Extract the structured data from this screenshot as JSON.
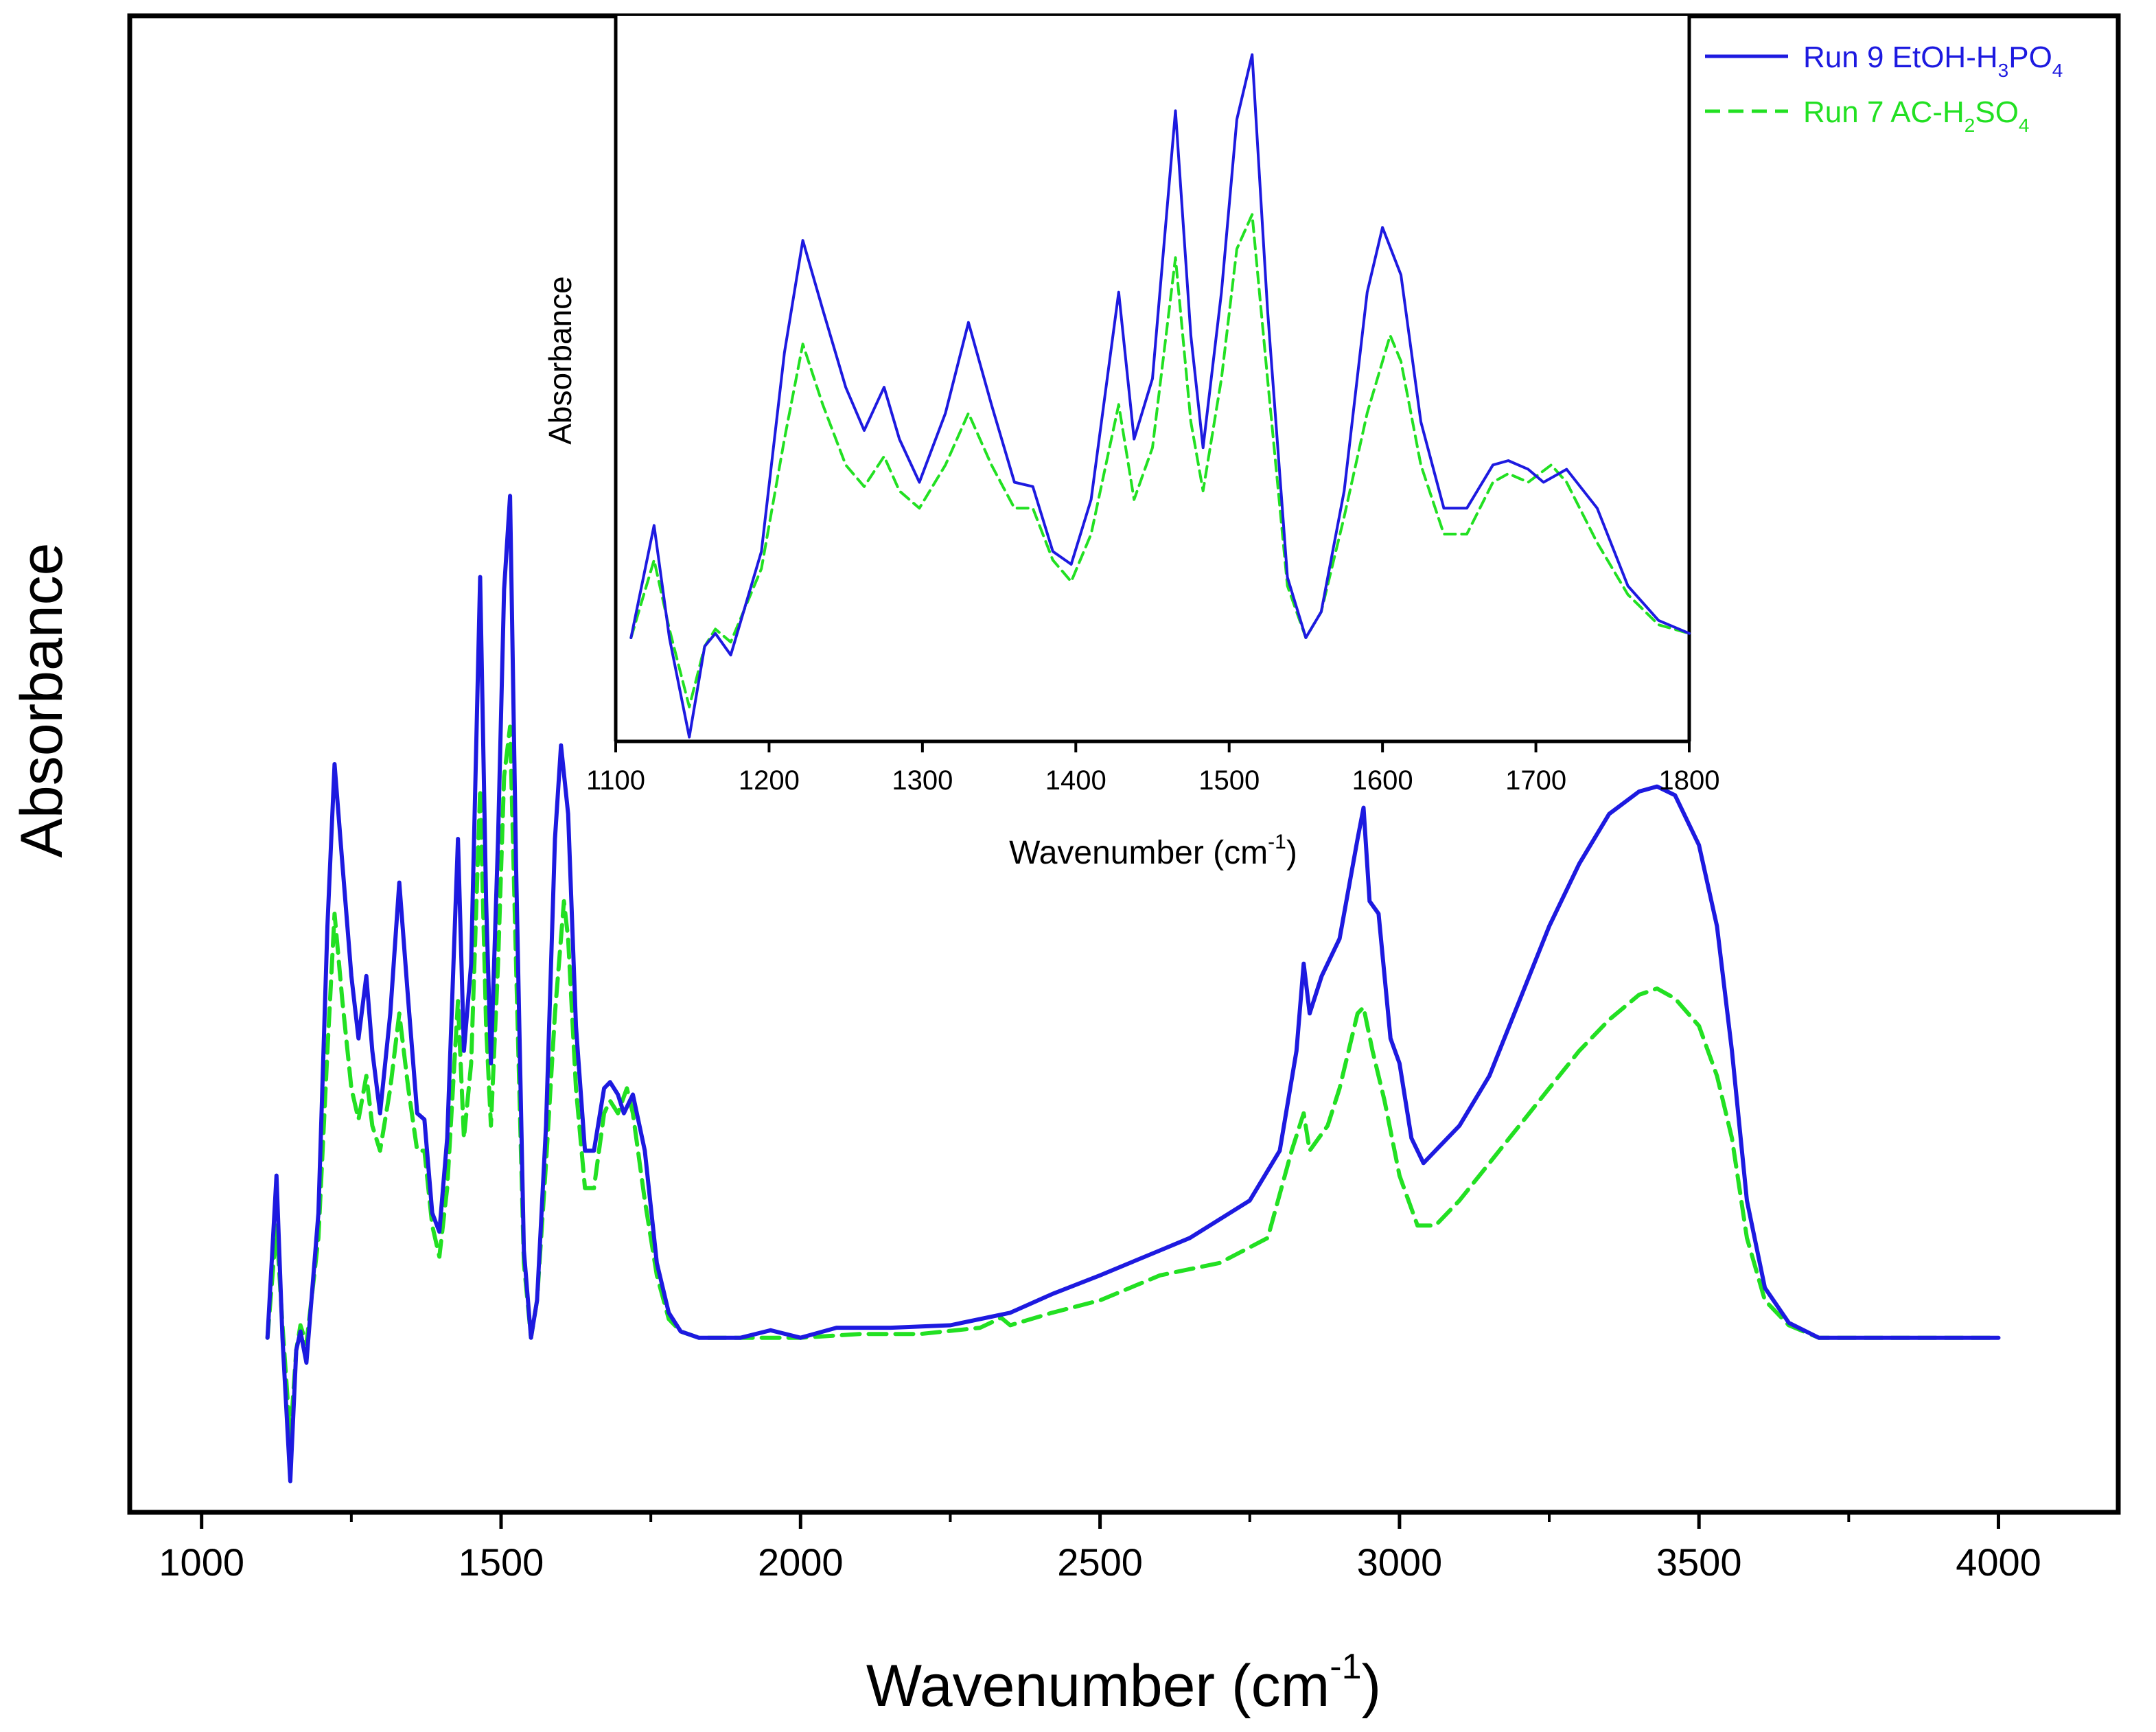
{
  "chart_data": [
    {
      "type": "line",
      "role": "main",
      "xlabel": "Wavenumber (cm",
      "xlabel_sup": "-1",
      "xlabel_close": ")",
      "ylabel": "Absorbance",
      "xlim": [
        880,
        4200
      ],
      "ylim": [
        -0.14,
        1.06
      ],
      "xticks": [
        1000,
        1500,
        2000,
        2500,
        3000,
        3500,
        4000
      ],
      "xtick_labels": [
        "1000",
        "1500",
        "2000",
        "2500",
        "3000",
        "3500",
        "4000"
      ],
      "minor_xticks": [
        1250,
        1750,
        2250,
        2750,
        3250,
        3750
      ],
      "grid": false,
      "series": [
        {
          "name": "Run 9 EtOH-H3PO4",
          "color": "#1d1ae0",
          "style": "solid",
          "points": [
            [
              1110,
              0.0
            ],
            [
              1125,
              0.13
            ],
            [
              1135,
              0.0
            ],
            [
              1148,
              -0.115
            ],
            [
              1158,
              -0.01
            ],
            [
              1165,
              0.005
            ],
            [
              1175,
              -0.02
            ],
            [
              1195,
              0.1
            ],
            [
              1210,
              0.33
            ],
            [
              1222,
              0.46
            ],
            [
              1235,
              0.38
            ],
            [
              1250,
              0.29
            ],
            [
              1262,
              0.24
            ],
            [
              1275,
              0.29
            ],
            [
              1285,
              0.23
            ],
            [
              1298,
              0.18
            ],
            [
              1315,
              0.26
            ],
            [
              1330,
              0.365
            ],
            [
              1345,
              0.27
            ],
            [
              1360,
              0.18
            ],
            [
              1372,
              0.175
            ],
            [
              1385,
              0.1
            ],
            [
              1397,
              0.085
            ],
            [
              1410,
              0.16
            ],
            [
              1428,
              0.4
            ],
            [
              1438,
              0.23
            ],
            [
              1450,
              0.3
            ],
            [
              1465,
              0.61
            ],
            [
              1475,
              0.35
            ],
            [
              1483,
              0.22
            ],
            [
              1495,
              0.4
            ],
            [
              1505,
              0.6
            ],
            [
              1515,
              0.675
            ],
            [
              1525,
              0.38
            ],
            [
              1538,
              0.07
            ],
            [
              1550,
              0.0
            ],
            [
              1560,
              0.03
            ],
            [
              1575,
              0.17
            ],
            [
              1590,
              0.4
            ],
            [
              1600,
              0.475
            ],
            [
              1612,
              0.42
            ],
            [
              1625,
              0.25
            ],
            [
              1640,
              0.15
            ],
            [
              1655,
              0.15
            ],
            [
              1672,
              0.2
            ],
            [
              1682,
              0.205
            ],
            [
              1695,
              0.195
            ],
            [
              1705,
              0.18
            ],
            [
              1720,
              0.195
            ],
            [
              1740,
              0.15
            ],
            [
              1760,
              0.06
            ],
            [
              1780,
              0.02
            ],
            [
              1800,
              0.005
            ],
            [
              1830,
              0.0
            ],
            [
              1900,
              0.0
            ],
            [
              1950,
              0.006
            ],
            [
              2000,
              0.0
            ],
            [
              2060,
              0.008
            ],
            [
              2150,
              0.008
            ],
            [
              2250,
              0.01
            ],
            [
              2350,
              0.02
            ],
            [
              2420,
              0.035
            ],
            [
              2500,
              0.05
            ],
            [
              2600,
              0.07
            ],
            [
              2650,
              0.08
            ],
            [
              2700,
              0.095
            ],
            [
              2750,
              0.11
            ],
            [
              2800,
              0.15
            ],
            [
              2828,
              0.23
            ],
            [
              2840,
              0.3
            ],
            [
              2850,
              0.26
            ],
            [
              2870,
              0.29
            ],
            [
              2900,
              0.32
            ],
            [
              2930,
              0.4
            ],
            [
              2940,
              0.425
            ],
            [
              2950,
              0.35
            ],
            [
              2965,
              0.34
            ],
            [
              2985,
              0.24
            ],
            [
              3000,
              0.22
            ],
            [
              3020,
              0.16
            ],
            [
              3040,
              0.14
            ],
            [
              3060,
              0.15
            ],
            [
              3100,
              0.17
            ],
            [
              3150,
              0.21
            ],
            [
              3200,
              0.27
            ],
            [
              3250,
              0.33
            ],
            [
              3300,
              0.38
            ],
            [
              3350,
              0.42
            ],
            [
              3400,
              0.438
            ],
            [
              3430,
              0.442
            ],
            [
              3460,
              0.435
            ],
            [
              3500,
              0.395
            ],
            [
              3530,
              0.33
            ],
            [
              3555,
              0.23
            ],
            [
              3580,
              0.11
            ],
            [
              3610,
              0.04
            ],
            [
              3650,
              0.012
            ],
            [
              3700,
              0.0
            ],
            [
              3800,
              0.0
            ],
            [
              3900,
              0.0
            ],
            [
              4000,
              0.0
            ]
          ]
        },
        {
          "name": "Run 7 AC-H2SO4",
          "color": "#22e022",
          "style": "dashed",
          "points": [
            [
              1110,
              0.0
            ],
            [
              1125,
              0.09
            ],
            [
              1135,
              0.01
            ],
            [
              1148,
              -0.08
            ],
            [
              1158,
              -0.01
            ],
            [
              1165,
              0.01
            ],
            [
              1175,
              -0.005
            ],
            [
              1195,
              0.08
            ],
            [
              1210,
              0.23
            ],
            [
              1222,
              0.34
            ],
            [
              1235,
              0.27
            ],
            [
              1250,
              0.2
            ],
            [
              1262,
              0.175
            ],
            [
              1275,
              0.21
            ],
            [
              1285,
              0.17
            ],
            [
              1298,
              0.15
            ],
            [
              1315,
              0.2
            ],
            [
              1330,
              0.26
            ],
            [
              1345,
              0.2
            ],
            [
              1360,
              0.15
            ],
            [
              1372,
              0.15
            ],
            [
              1385,
              0.09
            ],
            [
              1397,
              0.065
            ],
            [
              1410,
              0.12
            ],
            [
              1428,
              0.27
            ],
            [
              1438,
              0.16
            ],
            [
              1450,
              0.22
            ],
            [
              1465,
              0.44
            ],
            [
              1475,
              0.25
            ],
            [
              1483,
              0.17
            ],
            [
              1495,
              0.3
            ],
            [
              1505,
              0.45
            ],
            [
              1515,
              0.49
            ],
            [
              1525,
              0.3
            ],
            [
              1538,
              0.06
            ],
            [
              1550,
              0.0
            ],
            [
              1560,
              0.03
            ],
            [
              1575,
              0.14
            ],
            [
              1590,
              0.26
            ],
            [
              1605,
              0.35
            ],
            [
              1612,
              0.32
            ],
            [
              1625,
              0.2
            ],
            [
              1640,
              0.12
            ],
            [
              1655,
              0.12
            ],
            [
              1672,
              0.18
            ],
            [
              1682,
              0.19
            ],
            [
              1695,
              0.18
            ],
            [
              1710,
              0.2
            ],
            [
              1720,
              0.18
            ],
            [
              1740,
              0.11
            ],
            [
              1760,
              0.05
            ],
            [
              1780,
              0.015
            ],
            [
              1800,
              0.005
            ],
            [
              1830,
              0.0
            ],
            [
              1900,
              0.0
            ],
            [
              2000,
              0.0
            ],
            [
              2100,
              0.003
            ],
            [
              2200,
              0.003
            ],
            [
              2300,
              0.008
            ],
            [
              2335,
              0.016
            ],
            [
              2350,
              0.01
            ],
            [
              2420,
              0.02
            ],
            [
              2500,
              0.03
            ],
            [
              2600,
              0.05
            ],
            [
              2700,
              0.06
            ],
            [
              2780,
              0.08
            ],
            [
              2820,
              0.15
            ],
            [
              2840,
              0.18
            ],
            [
              2850,
              0.15
            ],
            [
              2880,
              0.17
            ],
            [
              2900,
              0.2
            ],
            [
              2930,
              0.26
            ],
            [
              2940,
              0.265
            ],
            [
              2955,
              0.23
            ],
            [
              2975,
              0.19
            ],
            [
              3000,
              0.13
            ],
            [
              3030,
              0.09
            ],
            [
              3060,
              0.09
            ],
            [
              3100,
              0.11
            ],
            [
              3150,
              0.14
            ],
            [
              3200,
              0.17
            ],
            [
              3250,
              0.2
            ],
            [
              3300,
              0.23
            ],
            [
              3350,
              0.255
            ],
            [
              3400,
              0.275
            ],
            [
              3430,
              0.28
            ],
            [
              3460,
              0.272
            ],
            [
              3500,
              0.25
            ],
            [
              3530,
              0.21
            ],
            [
              3555,
              0.16
            ],
            [
              3580,
              0.08
            ],
            [
              3610,
              0.03
            ],
            [
              3650,
              0.01
            ],
            [
              3700,
              0.0
            ],
            [
              3800,
              0.0
            ],
            [
              4000,
              0.0
            ]
          ]
        }
      ]
    },
    {
      "type": "line",
      "role": "inset",
      "xlabel": "Wavenumber (cm",
      "xlabel_sup": "-1",
      "xlabel_close": ")",
      "ylabel": "Absorbance",
      "xlim": [
        1100,
        1800
      ],
      "ylim": [
        -0.12,
        0.72
      ],
      "xticks": [
        1100,
        1200,
        1300,
        1400,
        1500,
        1600,
        1700,
        1800
      ],
      "xtick_labels": [
        "1100",
        "1200",
        "1300",
        "1400",
        "1500",
        "1600",
        "1700",
        "1800"
      ],
      "grid": false,
      "legend": {
        "position": "top-right",
        "entries": [
          {
            "series": "Run 9 EtOH-H3PO4",
            "label": "Run 9 EtOH-H",
            "sub1": "3",
            "label2": "PO",
            "sub2": "4"
          },
          {
            "series": "Run 7 AC-H2SO4",
            "label": "Run 7 AC-H",
            "sub1": "2",
            "label2": "SO",
            "sub2": "4"
          }
        ]
      },
      "series_ref": "same data as main chart, restricted to 1110-1800 cm-1"
    }
  ]
}
